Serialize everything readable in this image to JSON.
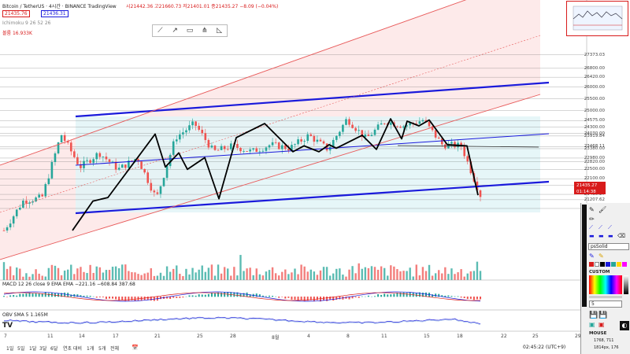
{
  "header": {
    "symbol": "Bitcoin / TetherUS · 4시간 · BINANCE  TradingView",
    "ohlc": "시21442.36  고21660.73  저21401.01  종21435.27  −8.09 (−0.04%)",
    "price_box_a": "21435.76",
    "price_box_b": "21436.31",
    "ema_label": "Ichimoku 9 26 52 26",
    "vol_label": "볼륨  16.933K"
  },
  "drawing_toolbar": {
    "tools": [
      "line-tool-icon",
      "ray-tool-icon",
      "rectangle-tool-icon",
      "pitchfork-tool-icon",
      "triangle-tool-icon"
    ]
  },
  "price_axis": {
    "ticks": [
      "27373.03",
      "26800.00",
      "26420.00",
      "26000.00",
      "25500.00",
      "25000.00",
      "24575.00",
      "24300.00",
      "24030.00",
      "23919.84",
      "23468.11",
      "23380.00",
      "22980.00",
      "22820.00",
      "22500.00",
      "22100.00",
      "21831.53",
      "21435.27",
      "21207.62",
      "20835.76"
    ],
    "last_price_tag": "21435.27",
    "last_price_countdown": "01:14:38"
  },
  "time_axis": {
    "ticks": [
      "7",
      "11",
      "14",
      "17",
      "21",
      "25",
      "28",
      "8월",
      "4",
      "8",
      "11",
      "15",
      "18",
      "22",
      "25",
      "29"
    ]
  },
  "indicators": {
    "macd_label": "MACD 12 26 close 9 EMA EMA  −221.16  −608.84  387.68",
    "obv_label": "OBV SMA 5  1.165M"
  },
  "bottom_bar": {
    "ranges": [
      "1일",
      "5일",
      "1달",
      "3달",
      "6달",
      "연초 대비",
      "1개",
      "5개",
      "전체"
    ],
    "clock": "02:45:22 (UTC+9)"
  },
  "right_panel": {
    "line_style": "psSolid",
    "custom_label": "CUSTOM",
    "width_value": "5",
    "mouse_label": "MOUSE",
    "coords_a": "1768, 711",
    "coords_b": "1814px, 176"
  },
  "colors": {
    "channel_blue": "#1a1adb",
    "channel_red": "#e85a5a",
    "zigzag": "#000000",
    "candle_up": "#26a69a",
    "candle_down": "#ef5350",
    "box_fill": "#e2f4f7"
  },
  "chart_data": {
    "type": "candlestick",
    "ylim": [
      20400,
      28200
    ],
    "zigzag_prices": [
      19900,
      21150,
      21300,
      24000,
      22600,
      23200,
      22500,
      23000,
      21250,
      23850,
      24450,
      23250,
      23500,
      23250,
      23550,
      23400,
      23950,
      23350,
      24650,
      23800,
      24550,
      24350,
      24600,
      23550,
      23500,
      21400
    ]
  }
}
